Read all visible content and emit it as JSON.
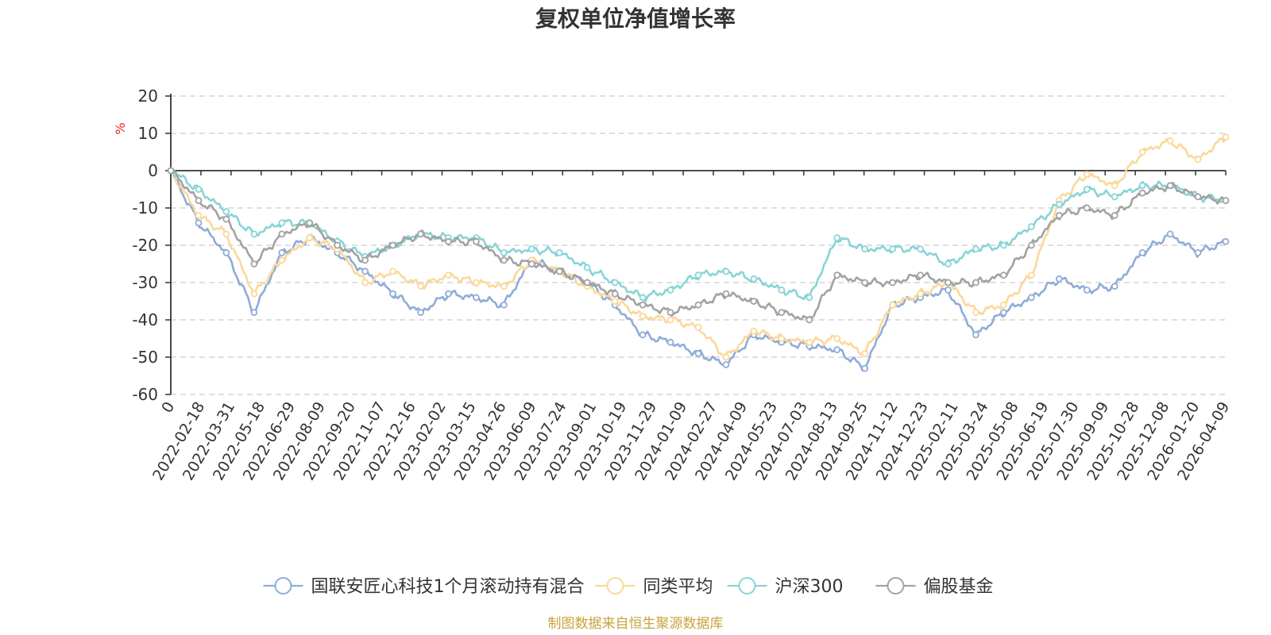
{
  "chart_data": {
    "type": "line",
    "title": "复权单位净值增长率",
    "ylabel": "%",
    "ylim": [
      -60,
      20
    ],
    "yticks": [
      20,
      10,
      0,
      -10,
      -20,
      -30,
      -40,
      -50,
      -60
    ],
    "x_tick_labels": [
      "0",
      "2022-02-18",
      "2022-03-31",
      "2022-05-18",
      "2022-06-29",
      "2022-08-09",
      "2022-09-20",
      "2022-11-07",
      "2022-12-16",
      "2023-02-02",
      "2023-03-15",
      "2023-04-26",
      "2023-06-09",
      "2023-07-24",
      "2023-09-01",
      "2023-10-19",
      "2023-11-29",
      "2024-01-09",
      "2024-02-27",
      "2024-04-09",
      "2024-05-23",
      "2024-07-03",
      "2024-08-13",
      "2024-09-25",
      "2024-11-12",
      "2024-12-23",
      "2025-02-11",
      "2025-03-24",
      "2025-05-08",
      "2025-06-19",
      "2025-07-30",
      "2025-09-09",
      "2025-10-28",
      "2025-12-08",
      "2026-01-20",
      "2026-04-09"
    ],
    "grid": true,
    "legend_position": "bottom",
    "series": [
      {
        "name": "国联安匠心科技1个月滚动持有混合",
        "color": "#8eacd8",
        "values": [
          0,
          -14,
          -22,
          -38,
          -22,
          -18,
          -22,
          -27,
          -33,
          -38,
          -33,
          -34,
          -36,
          -24,
          -27,
          -30,
          -36,
          -44,
          -46,
          -49,
          -52,
          -44,
          -46,
          -47,
          -48,
          -53,
          -36,
          -34,
          -32,
          -44,
          -38,
          -34,
          -29,
          -32,
          -31,
          -22,
          -17,
          -22,
          -19
        ]
      },
      {
        "name": "同类平均",
        "color": "#fbd89a",
        "values": [
          0,
          -12,
          -17,
          -33,
          -24,
          -18,
          -21,
          -30,
          -27,
          -31,
          -28,
          -30,
          -31,
          -24,
          -27,
          -31,
          -35,
          -39,
          -40,
          -42,
          -50,
          -43,
          -45,
          -46,
          -45,
          -49,
          -36,
          -33,
          -30,
          -38,
          -36,
          -28,
          -8,
          -1,
          -4,
          5,
          8,
          3,
          9
        ]
      },
      {
        "name": "沪深300",
        "color": "#88d4d6",
        "values": [
          0,
          -5,
          -11,
          -17,
          -14,
          -14,
          -19,
          -23,
          -20,
          -17,
          -18,
          -18,
          -22,
          -21,
          -22,
          -26,
          -30,
          -34,
          -32,
          -28,
          -27,
          -29,
          -32,
          -34,
          -18,
          -21,
          -21,
          -21,
          -25,
          -21,
          -20,
          -15,
          -9,
          -5,
          -7,
          -4,
          -4,
          -7,
          -8
        ]
      },
      {
        "name": "偏股基金",
        "color": "#a2a2a2",
        "values": [
          0,
          -8,
          -13,
          -25,
          -17,
          -14,
          -20,
          -24,
          -20,
          -17,
          -19,
          -19,
          -24,
          -25,
          -27,
          -30,
          -33,
          -36,
          -38,
          -36,
          -33,
          -35,
          -38,
          -40,
          -28,
          -30,
          -30,
          -28,
          -30,
          -30,
          -28,
          -20,
          -12,
          -10,
          -12,
          -6,
          -4,
          -7,
          -8
        ]
      }
    ]
  },
  "source_note": "制图数据来自恒生聚源数据库"
}
